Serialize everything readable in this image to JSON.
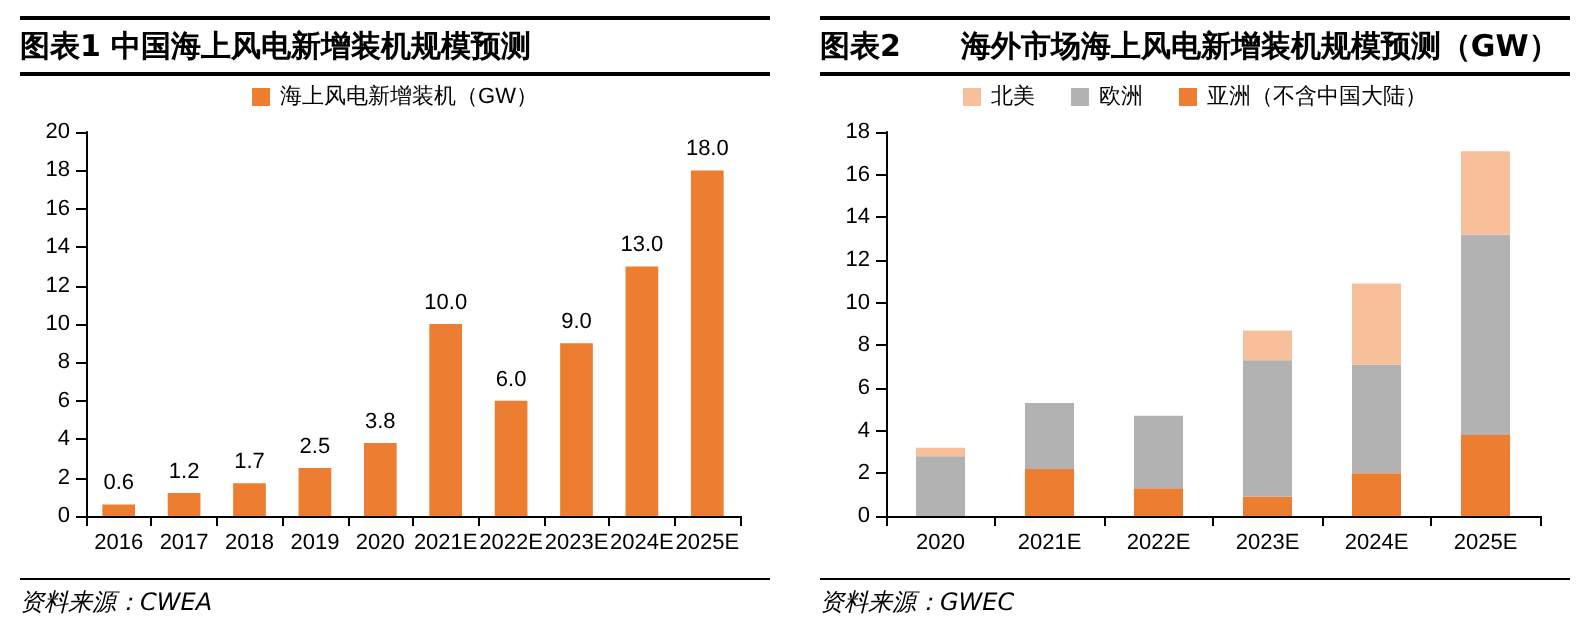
{
  "chart_data": [
    {
      "type": "bar",
      "title": "图表1 中国海上风电新增装机规模预测",
      "categories": [
        "2016",
        "2017",
        "2018",
        "2019",
        "2020",
        "2021E",
        "2022E",
        "2023E",
        "2024E",
        "2025E"
      ],
      "series": [
        {
          "name": "海上风电新增装机（GW）",
          "color": "#ed7d31",
          "values": [
            0.6,
            1.2,
            1.7,
            2.5,
            3.8,
            10,
            6,
            9,
            13,
            18
          ],
          "value_labels": [
            "0.6",
            "1.2",
            "1.7",
            "2.5",
            "3.8",
            "10.0",
            "6.0",
            "9.0",
            "13.0",
            "18.0"
          ]
        }
      ],
      "ylim": [
        0,
        20
      ],
      "yticks": [
        0,
        2,
        4,
        6,
        8,
        10,
        12,
        14,
        16,
        18,
        20
      ],
      "legend": "top",
      "grid": false,
      "annotations": [
        "资料来源：CWEA"
      ]
    },
    {
      "type": "bar",
      "title": "图表2　　海外市场海上风电新增装机规模预测（GW）",
      "categories": [
        "2020",
        "2021E",
        "2022E",
        "2023E",
        "2024E",
        "2025E"
      ],
      "stacked": true,
      "series": [
        {
          "name": "亚洲（不含中国大陆）",
          "color": "#ed7d31",
          "values": [
            0,
            2.2,
            1.3,
            0.9,
            2.0,
            3.8
          ]
        },
        {
          "name": "欧洲",
          "color": "#b2b2b2",
          "values": [
            2.8,
            3.1,
            3.4,
            6.4,
            5.1,
            9.4
          ]
        },
        {
          "name": "北美",
          "color": "#f8c09a",
          "values": [
            0.4,
            0,
            0,
            1.4,
            3.8,
            3.9
          ]
        }
      ],
      "ylim": [
        0,
        18
      ],
      "yticks": [
        0,
        2,
        4,
        6,
        8,
        10,
        12,
        14,
        16,
        18
      ],
      "legend": "top",
      "grid": false,
      "annotations": [
        "资料来源：GWEC"
      ]
    }
  ]
}
